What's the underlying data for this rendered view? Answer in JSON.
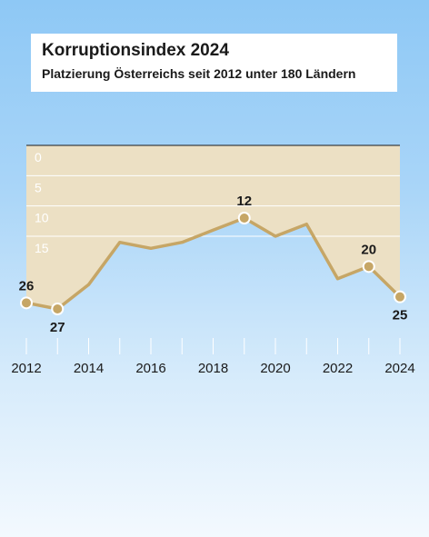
{
  "header": {
    "title": "Korruptionsindex 2024",
    "subtitle": "Platzierung Österreichs seit 2012 unter 180 Ländern"
  },
  "colors": {
    "plot_fill": "#ece0c4",
    "line": "#c6a666",
    "grid": "#ffffff",
    "ytick": "#ffffff",
    "axis_top": "#1a1a1a",
    "text": "#1a1a1a"
  },
  "chart_data": {
    "type": "line",
    "x": [
      2012,
      2013,
      2014,
      2015,
      2016,
      2017,
      2018,
      2019,
      2020,
      2021,
      2022,
      2023,
      2024
    ],
    "series": [
      {
        "values": [
          26,
          27,
          23,
          16,
          17,
          16,
          14,
          12,
          15,
          13,
          22,
          20,
          25
        ]
      }
    ],
    "labeled_points": [
      {
        "x": 2012,
        "label": "26"
      },
      {
        "x": 2013,
        "label": "27"
      },
      {
        "x": 2019,
        "label": "12"
      },
      {
        "x": 2023,
        "label": "20"
      },
      {
        "x": 2024,
        "label": "25"
      }
    ],
    "yticks": [
      0,
      5,
      10,
      15
    ],
    "ylim": [
      0,
      27
    ],
    "y_inverted": true,
    "xticks": [
      2012,
      2014,
      2016,
      2018,
      2020,
      2022,
      2024
    ],
    "grid": true,
    "legend": "none"
  }
}
